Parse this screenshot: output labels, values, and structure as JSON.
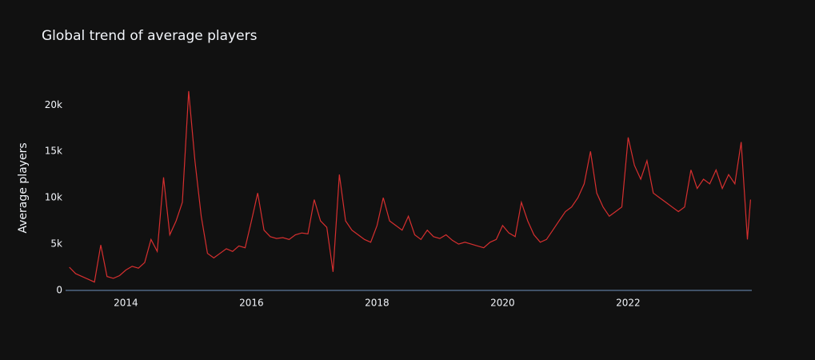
{
  "chart_data": {
    "type": "line",
    "title": "Global trend of average players",
    "ylabel": "Average players",
    "x": [
      2013.1,
      2013.2,
      2013.3,
      2013.4,
      2013.5,
      2013.6,
      2013.7,
      2013.8,
      2013.9,
      2014.0,
      2014.1,
      2014.2,
      2014.3,
      2014.4,
      2014.5,
      2014.6,
      2014.7,
      2014.8,
      2014.9,
      2015.0,
      2015.1,
      2015.2,
      2015.3,
      2015.4,
      2015.5,
      2015.6,
      2015.7,
      2015.8,
      2015.9,
      2016.0,
      2016.1,
      2016.2,
      2016.3,
      2016.4,
      2016.5,
      2016.6,
      2016.7,
      2016.8,
      2016.9,
      2017.0,
      2017.1,
      2017.2,
      2017.3,
      2017.4,
      2017.5,
      2017.6,
      2017.7,
      2017.8,
      2017.9,
      2018.0,
      2018.1,
      2018.2,
      2018.3,
      2018.4,
      2018.5,
      2018.6,
      2018.7,
      2018.8,
      2018.9,
      2019.0,
      2019.1,
      2019.2,
      2019.3,
      2019.4,
      2019.5,
      2019.6,
      2019.7,
      2019.8,
      2019.9,
      2020.0,
      2020.1,
      2020.2,
      2020.3,
      2020.4,
      2020.5,
      2020.6,
      2020.7,
      2020.8,
      2020.9,
      2021.0,
      2021.1,
      2021.2,
      2021.3,
      2021.4,
      2021.5,
      2021.6,
      2021.7,
      2021.8,
      2021.9,
      2022.0,
      2022.1,
      2022.2,
      2022.3,
      2022.4,
      2022.5,
      2022.6,
      2022.7,
      2022.8,
      2022.9,
      2023.0,
      2023.1,
      2023.2,
      2023.3,
      2023.4,
      2023.5,
      2023.6,
      2023.7,
      2023.8,
      2023.9,
      2023.95
    ],
    "series": [
      {
        "name": "Average players",
        "color": "#d62f2f",
        "values": [
          2500,
          1800,
          1500,
          1200,
          900,
          4900,
          1500,
          1300,
          1600,
          2200,
          2600,
          2400,
          3000,
          5500,
          4200,
          12200,
          6000,
          7500,
          9500,
          21500,
          14000,
          8000,
          4000,
          3500,
          4000,
          4500,
          4200,
          4800,
          4600,
          7500,
          10500,
          6500,
          5800,
          5600,
          5700,
          5500,
          6000,
          6200,
          6100,
          9800,
          7500,
          6800,
          2000,
          12500,
          7500,
          6500,
          6000,
          5500,
          5200,
          7000,
          10000,
          7500,
          7000,
          6500,
          8000,
          6000,
          5500,
          6500,
          5800,
          5600,
          6000,
          5400,
          5000,
          5200,
          5000,
          4800,
          4600,
          5200,
          5500,
          7000,
          6200,
          5800,
          9500,
          7500,
          6000,
          5200,
          5500,
          6500,
          7500,
          8500,
          9000,
          10000,
          11500,
          15000,
          10500,
          9000,
          8000,
          8500,
          9000,
          16500,
          13500,
          12000,
          14000,
          10500,
          10000,
          9500,
          9000,
          8500,
          9000,
          13000,
          11000,
          12000,
          11500,
          13000,
          11000,
          12500,
          11500,
          16000,
          5500,
          9800
        ]
      }
    ],
    "xlim": [
      2013.04,
      2023.97
    ],
    "xticks": [
      2014,
      2016,
      2018,
      2020,
      2022
    ],
    "ylim": [
      0,
      22700
    ],
    "yticks": [
      0,
      {
        "value": 5000,
        "label": "5k"
      },
      {
        "value": 10000,
        "label": "10k"
      },
      {
        "value": 15000,
        "label": "15k"
      },
      {
        "value": 20000,
        "label": "20k"
      }
    ],
    "grid": false
  }
}
